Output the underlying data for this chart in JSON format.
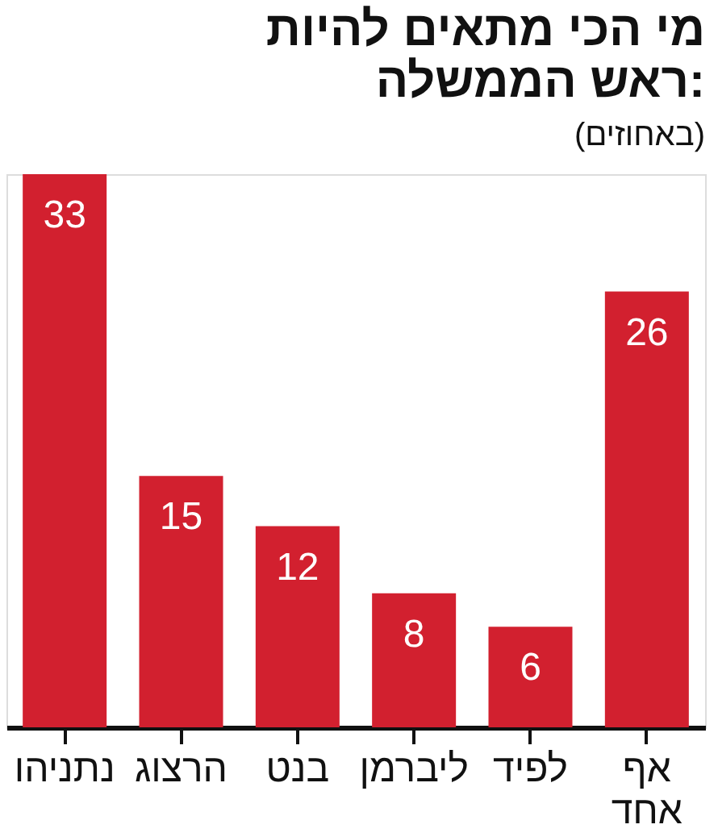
{
  "chart_data": {
    "type": "bar",
    "title": "מי הכי מתאים להיות\nראש הממשלה:",
    "subtitle": "(באחוזים)",
    "categories": [
      "נתניהו",
      "הרצוג",
      "בנט",
      "ליברמן",
      "לפיד",
      "אף אחד"
    ],
    "values": [
      33,
      15,
      12,
      8,
      6,
      26
    ],
    "color": "#d2202f",
    "data_labels": true
  }
}
